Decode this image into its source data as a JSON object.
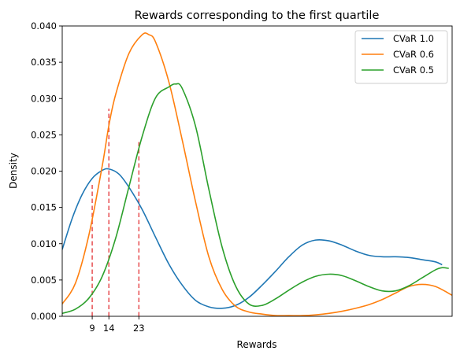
{
  "chart_data": {
    "type": "line",
    "title": "Rewards corresponding to the first quartile",
    "xlabel": "Rewards",
    "ylabel": "Density",
    "xlim": [
      0,
      117
    ],
    "ylim": [
      0,
      0.04
    ],
    "x_ticks": [
      9,
      14,
      23
    ],
    "y_ticks": [
      0.0,
      0.005,
      0.01,
      0.015,
      0.02,
      0.025,
      0.03,
      0.035,
      0.04
    ],
    "y_tick_labels": [
      "0.000",
      "0.005",
      "0.010",
      "0.015",
      "0.020",
      "0.025",
      "0.030",
      "0.035",
      "0.040"
    ],
    "legend_position": "top-right",
    "grid": false,
    "series": [
      {
        "name": "CVaR 1.0",
        "color": "#1f77b4",
        "x": [
          0,
          3,
          6,
          9,
          12,
          14,
          17,
          20,
          24,
          28,
          32,
          36,
          40,
          44,
          48,
          52,
          56,
          60,
          64,
          68,
          72,
          76,
          80,
          84,
          88,
          92,
          96,
          100,
          104,
          108,
          112,
          114
        ],
        "y": [
          0.0092,
          0.0135,
          0.0168,
          0.019,
          0.0201,
          0.0203,
          0.0196,
          0.0178,
          0.0147,
          0.0109,
          0.0072,
          0.0043,
          0.0022,
          0.0013,
          0.0011,
          0.0015,
          0.0026,
          0.0043,
          0.0062,
          0.0082,
          0.0098,
          0.0105,
          0.0104,
          0.0098,
          0.009,
          0.0084,
          0.0082,
          0.0082,
          0.0081,
          0.0078,
          0.0075,
          0.0071
        ]
      },
      {
        "name": "CVaR 0.6",
        "color": "#ff7f0e",
        "x": [
          0,
          4,
          8,
          12,
          14,
          16,
          20,
          24,
          26,
          28,
          32,
          36,
          40,
          44,
          48,
          52,
          56,
          60,
          64,
          68,
          72,
          76,
          80,
          84,
          88,
          92,
          96,
          100,
          104,
          108,
          112,
          117
        ],
        "y": [
          0.0017,
          0.0046,
          0.0112,
          0.0207,
          0.0263,
          0.0305,
          0.0362,
          0.0388,
          0.0388,
          0.0378,
          0.0323,
          0.0243,
          0.0158,
          0.0082,
          0.0037,
          0.0014,
          0.0006,
          0.0003,
          0.0001,
          0.0001,
          0.0001,
          0.0002,
          0.0004,
          0.0007,
          0.0011,
          0.0016,
          0.0023,
          0.0032,
          0.0041,
          0.0044,
          0.0041,
          0.0029
        ]
      },
      {
        "name": "CVaR 0.5",
        "color": "#2ca02c",
        "x": [
          0,
          4,
          8,
          12,
          16,
          20,
          24,
          28,
          32,
          34,
          36,
          40,
          44,
          48,
          52,
          56,
          60,
          64,
          68,
          72,
          76,
          80,
          84,
          88,
          92,
          96,
          100,
          104,
          108,
          112,
          114,
          116
        ],
        "y": [
          0.0004,
          0.001,
          0.0025,
          0.0055,
          0.0107,
          0.0178,
          0.0248,
          0.0301,
          0.0316,
          0.032,
          0.0314,
          0.0262,
          0.0175,
          0.0095,
          0.0042,
          0.0017,
          0.0015,
          0.0024,
          0.0036,
          0.0047,
          0.0055,
          0.0058,
          0.0056,
          0.0049,
          0.0041,
          0.0035,
          0.0035,
          0.0042,
          0.0053,
          0.0064,
          0.0067,
          0.0066
        ]
      }
    ],
    "vlines": [
      {
        "x": 9,
        "y": 0.0181,
        "color": "#e8575a"
      },
      {
        "x": 14,
        "y": 0.0286,
        "color": "#e8575a"
      },
      {
        "x": 23,
        "y": 0.0242,
        "color": "#e8575a"
      }
    ]
  }
}
